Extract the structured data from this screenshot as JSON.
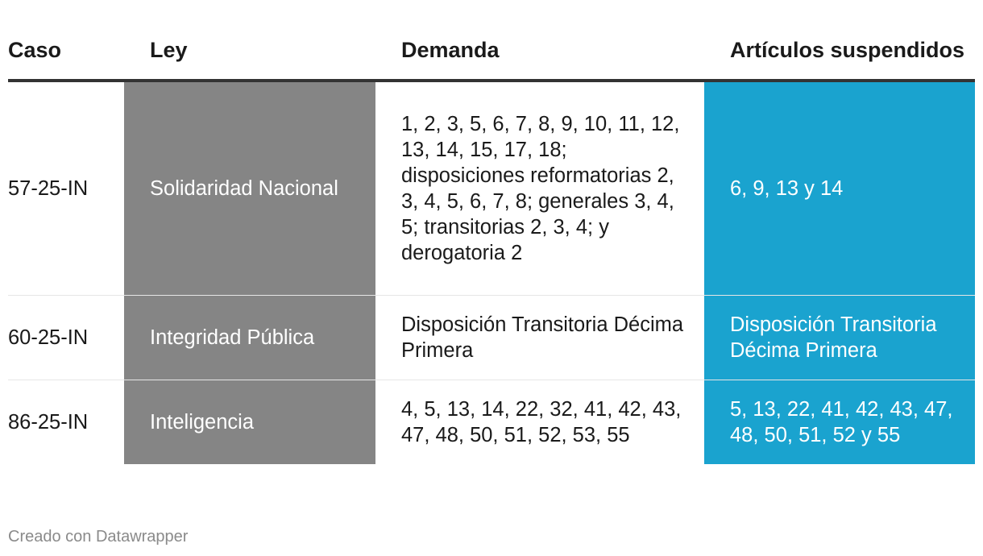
{
  "chart_data": {
    "type": "table",
    "columns": [
      "Caso",
      "Ley",
      "Demanda",
      "Artículos suspendidos"
    ],
    "rows": [
      {
        "caso": "57-25-IN",
        "ley": "Solidaridad Nacional",
        "demanda": "1, 2, 3, 5, 6, 7, 8, 9, 10, 11, 12, 13, 14, 15, 17, 18; disposiciones reformatorias 2, 3, 4, 5, 6, 7, 8; generales 3, 4, 5; transitorias 2, 3, 4; y derogatoria 2",
        "articulos": "6, 9, 13 y 14"
      },
      {
        "caso": "60-25-IN",
        "ley": "Integridad Pública",
        "demanda": "Disposición Transitoria Décima Primera",
        "articulos": "Disposición Transitoria Décima Primera"
      },
      {
        "caso": "86-25-IN",
        "ley": "Inteligencia",
        "demanda": "4, 5, 13, 14, 22, 32, 41, 42, 43, 47, 48, 50, 51, 52, 53, 55",
        "articulos": "5, 13, 22, 41, 42, 43, 47, 48, 50, 51, 52 y 55"
      }
    ],
    "colors": {
      "ley_column": "#858585",
      "articulos_column": "#1aa3cf",
      "header_rule": "#333333"
    }
  },
  "footer": {
    "credit": "Creado con Datawrapper"
  }
}
